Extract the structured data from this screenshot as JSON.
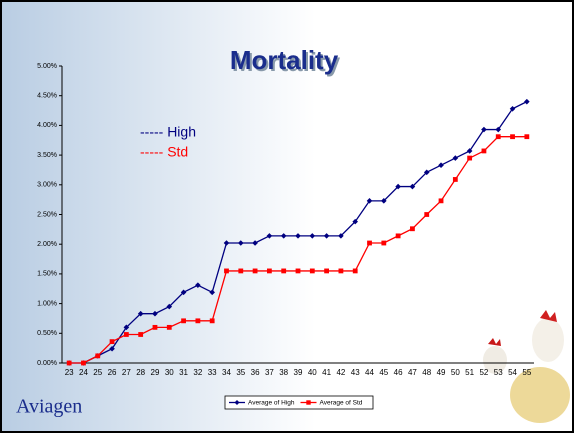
{
  "chart_data": {
    "type": "line",
    "title": "Mortality",
    "categories": [
      "23",
      "24",
      "25",
      "26",
      "27",
      "28",
      "29",
      "30",
      "31",
      "32",
      "33",
      "34",
      "35",
      "36",
      "37",
      "38",
      "39",
      "40",
      "41",
      "42",
      "43",
      "44",
      "45",
      "46",
      "47",
      "48",
      "49",
      "50",
      "51",
      "52",
      "53",
      "54",
      "55"
    ],
    "series": [
      {
        "name": "Average of High",
        "color": "#000080",
        "marker": "diamond",
        "values": [
          0,
          0,
          0.12,
          0.24,
          0.6,
          0.83,
          0.83,
          0.95,
          1.19,
          1.31,
          1.19,
          2.02,
          2.02,
          2.02,
          2.14,
          2.14,
          2.14,
          2.14,
          2.14,
          2.14,
          2.38,
          2.73,
          2.73,
          2.97,
          2.97,
          3.21,
          3.33,
          3.45,
          3.57,
          3.93,
          3.93,
          4.28,
          4.4
        ]
      },
      {
        "name": "Average of Std",
        "color": "#ff0000",
        "marker": "square",
        "values": [
          0,
          0,
          0.12,
          0.36,
          0.48,
          0.48,
          0.6,
          0.6,
          0.71,
          0.71,
          0.71,
          1.55,
          1.55,
          1.55,
          1.55,
          1.55,
          1.55,
          1.55,
          1.55,
          1.55,
          1.55,
          2.02,
          2.02,
          2.14,
          2.26,
          2.5,
          2.73,
          3.09,
          3.45,
          3.57,
          3.81,
          3.81,
          3.81
        ]
      }
    ],
    "ylim": [
      0,
      5
    ],
    "yticks": [
      {
        "value": 0,
        "label": "0.00%"
      },
      {
        "value": 0.5,
        "label": "0.50%"
      },
      {
        "value": 1,
        "label": "1.00%"
      },
      {
        "value": 1.5,
        "label": "1.50%"
      },
      {
        "value": 2,
        "label": "2.00%"
      },
      {
        "value": 2.5,
        "label": "2.50%"
      },
      {
        "value": 3,
        "label": "3.00%"
      },
      {
        "value": 3.5,
        "label": "3.50%"
      },
      {
        "value": 4,
        "label": "4.00%"
      },
      {
        "value": 4.5,
        "label": "4.50%"
      },
      {
        "value": 5,
        "label": "5.00%"
      }
    ],
    "annotations": [
      {
        "text": "----- High",
        "color": "#000080"
      },
      {
        "text": "----- Std",
        "color": "#ff0000"
      }
    ],
    "legend": "bottom"
  },
  "slide": {
    "logo": "Aviagen"
  }
}
